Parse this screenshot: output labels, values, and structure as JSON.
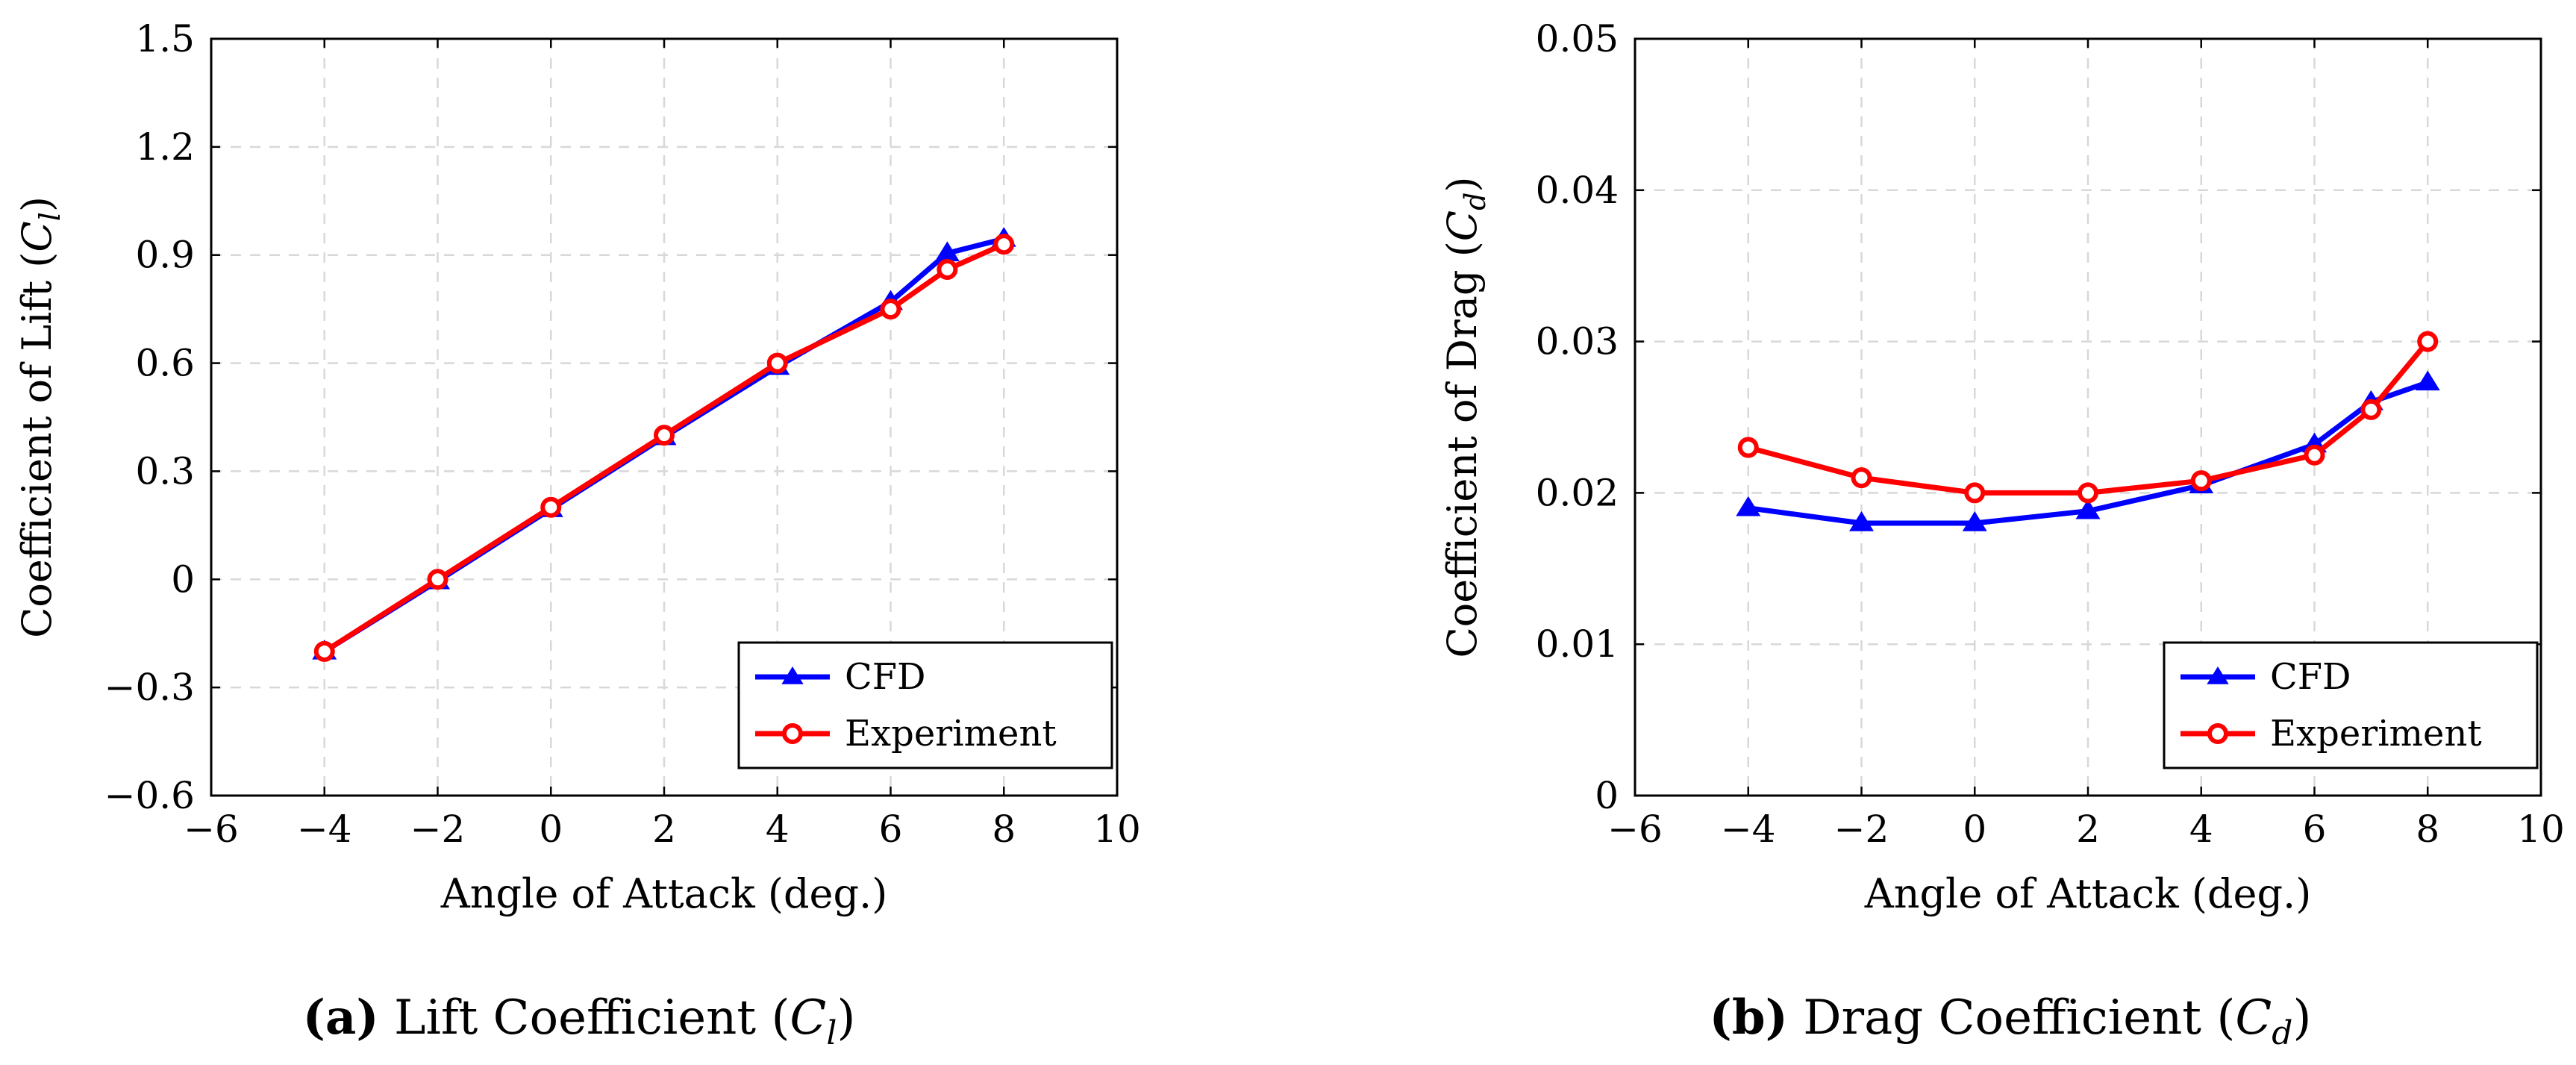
{
  "chart_data": [
    {
      "type": "line",
      "title": "",
      "xlabel": "Angle of Attack (deg.)",
      "ylabel": {
        "main": "Coefficient of Lift (",
        "var": "C",
        "sub": "l",
        "end": ")"
      },
      "caption": {
        "label": "(a)",
        "text": "Lift Coefficient (",
        "var": "C",
        "sub": "l",
        "end": ")"
      },
      "xlim": [
        -6,
        10
      ],
      "ylim": [
        -0.6,
        1.5
      ],
      "xticks": [
        -6,
        -4,
        -2,
        0,
        2,
        4,
        6,
        8,
        10
      ],
      "xtick_labels": [
        "−6",
        "−4",
        "−2",
        "0",
        "2",
        "4",
        "6",
        "8",
        "10"
      ],
      "yticks": [
        -0.6,
        -0.3,
        0,
        0.3,
        0.6,
        0.9,
        1.2,
        1.5
      ],
      "ytick_labels": [
        "−0.6",
        "−0.3",
        "0",
        "0.3",
        "0.6",
        "0.9",
        "1.2",
        "1.5"
      ],
      "grid": true,
      "legend_position": "bottom-right",
      "x": [
        -4,
        -2,
        0,
        2,
        4,
        6,
        7,
        8
      ],
      "series": [
        {
          "name": "CFD",
          "color": "#0000ff",
          "marker": "triangle",
          "values": [
            -0.2,
            -0.005,
            0.195,
            0.395,
            0.59,
            0.77,
            0.905,
            0.945
          ]
        },
        {
          "name": "Experiment",
          "color": "#ff0000",
          "marker": "circle",
          "values": [
            -0.2,
            0.0,
            0.2,
            0.4,
            0.6,
            0.75,
            0.86,
            0.93
          ]
        }
      ]
    },
    {
      "type": "line",
      "title": "",
      "xlabel": "Angle of Attack (deg.)",
      "ylabel": {
        "main": "Coefficient of Drag (",
        "var": "C",
        "sub": "d",
        "end": ")"
      },
      "caption": {
        "label": "(b)",
        "text": "Drag Coefficient (",
        "var": "C",
        "sub": "d",
        "end": ")"
      },
      "xlim": [
        -6,
        10
      ],
      "ylim": [
        0,
        0.05
      ],
      "xticks": [
        -6,
        -4,
        -2,
        0,
        2,
        4,
        6,
        8,
        10
      ],
      "xtick_labels": [
        "−6",
        "−4",
        "−2",
        "0",
        "2",
        "4",
        "6",
        "8",
        "10"
      ],
      "yticks": [
        0,
        0.01,
        0.02,
        0.03,
        0.04,
        0.05
      ],
      "ytick_labels": [
        "0",
        "0.01",
        "0.02",
        "0.03",
        "0.04",
        "0.05"
      ],
      "grid": true,
      "legend_position": "bottom-right",
      "x": [
        -4,
        -2,
        0,
        2,
        4,
        6,
        7,
        8
      ],
      "series": [
        {
          "name": "CFD",
          "color": "#0000ff",
          "marker": "triangle",
          "values": [
            0.019,
            0.018,
            0.018,
            0.0188,
            0.0205,
            0.0232,
            0.026,
            0.0273
          ]
        },
        {
          "name": "Experiment",
          "color": "#ff0000",
          "marker": "circle",
          "values": [
            0.023,
            0.021,
            0.02,
            0.02,
            0.0208,
            0.0225,
            0.0255,
            0.03
          ]
        }
      ]
    }
  ]
}
